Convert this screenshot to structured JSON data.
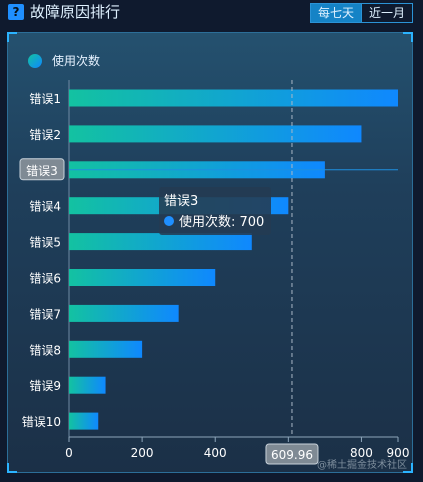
{
  "header": {
    "icon": "question-icon",
    "title": "故障原因排行",
    "tabs": [
      {
        "label": "每七天",
        "active": true
      },
      {
        "label": "近一月",
        "active": false
      }
    ]
  },
  "chart_data": {
    "type": "bar",
    "orientation": "horizontal",
    "legend": [
      "使用次数"
    ],
    "categories": [
      "错误1",
      "错误2",
      "错误3",
      "错误4",
      "错误5",
      "错误6",
      "错误7",
      "错误8",
      "错误9",
      "错误10"
    ],
    "series": [
      {
        "name": "使用次数",
        "values": [
          900,
          800,
          700,
          600,
          500,
          400,
          300,
          200,
          100,
          80
        ]
      }
    ],
    "x_ticks": [
      0,
      200,
      400,
      600,
      800,
      900
    ],
    "x_tick_labels": [
      "0",
      "200",
      "400",
      "",
      "800",
      "900"
    ],
    "xlim": [
      0,
      900
    ],
    "grid": false,
    "colors": {
      "bar_start": "#13c2a1",
      "bar_end": "#0f88ff",
      "crosshair": "#a9b7c6"
    },
    "highlight_category": "错误3",
    "pointer_value": 609.96,
    "pointer_label": "609.96",
    "tooltip": {
      "title": "错误3",
      "series": "使用次数",
      "value": "700"
    }
  },
  "watermark": "@稀土掘金技术社区"
}
